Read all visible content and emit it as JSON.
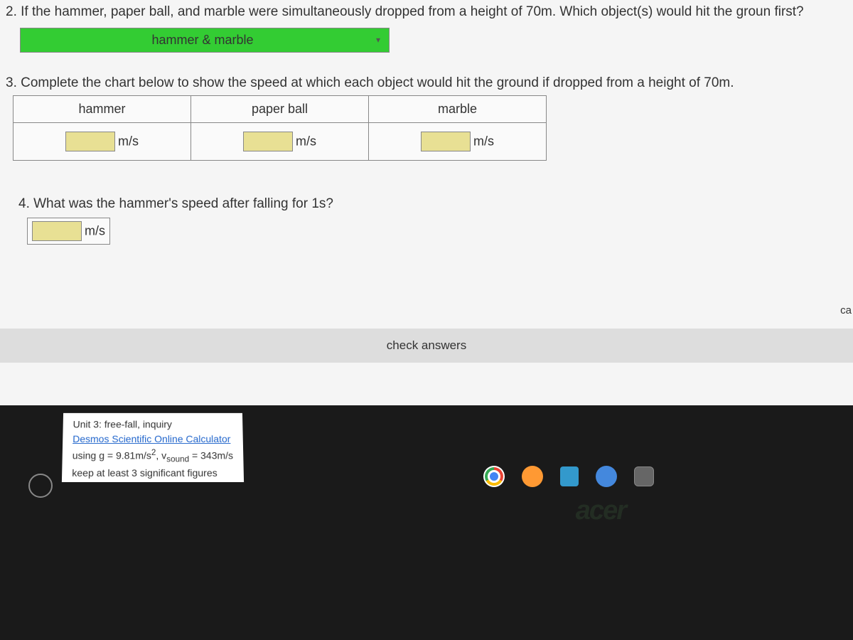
{
  "q2": {
    "text": "2. If the hammer, paper ball, and marble were simultaneously dropped from a height of 70m. Which object(s) would hit the groun first?",
    "answer": "hammer & marble"
  },
  "q3": {
    "text": "3. Complete the chart below to show the speed at which each object would hit the ground if dropped from a height of 70m.",
    "headers": [
      "hammer",
      "paper ball",
      "marble"
    ],
    "unit": "m/s"
  },
  "q4": {
    "text": "4. What was the hammer's speed after falling for 1s?",
    "unit": "m/s"
  },
  "check_label": "check answers",
  "side_label": "ca",
  "info": {
    "title": "Unit 3: free-fall, inquiry",
    "link": "Desmos Scientific Online Calculator",
    "line1_a": "using g = 9.81m/s",
    "line1_sup": "2",
    "line1_b": ", v",
    "line1_sub": "sound",
    "line1_c": " = 343m/s",
    "line2": "keep at least 3 significant figures"
  },
  "brand": "acer",
  "colors": {
    "correct_green": "#33cc33",
    "input_yellow": "#e8e094"
  }
}
